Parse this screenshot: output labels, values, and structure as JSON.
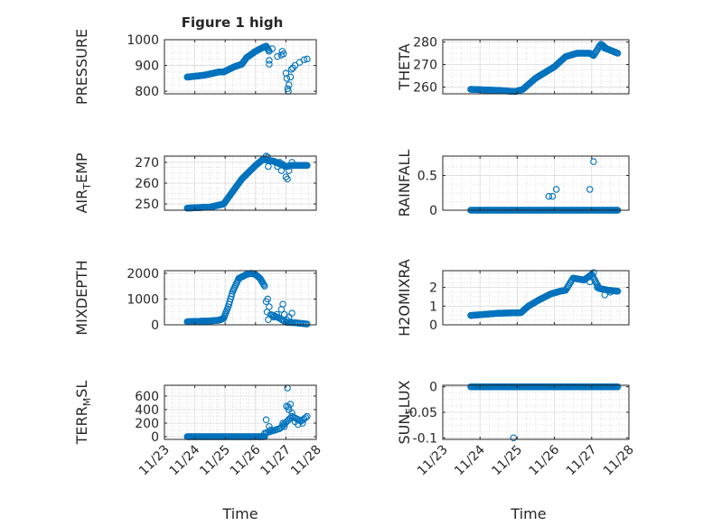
{
  "figure": {
    "title": "Figure 1 high"
  },
  "chart_data": [
    {
      "id": "pressure",
      "type": "scatter",
      "ylabel": "PRESSURE",
      "xlim": [
        0,
        5
      ],
      "ylim": [
        790,
        1000
      ],
      "yticks": [
        800,
        900,
        1000
      ],
      "ytick_labels": [
        "800",
        "900",
        "1000"
      ],
      "xticks": [
        0,
        1,
        2,
        3,
        4,
        5
      ],
      "xtick_labels": [
        "11/23",
        "11/24",
        "11/25",
        "11/26",
        "11/27",
        "11/28"
      ],
      "show_xtick_labels": false,
      "xlabel": "",
      "color": "#0072BD",
      "segments": [
        {
          "pts": [
            [
              0.75,
              855
            ],
            [
              1.3,
              862
            ],
            [
              1.8,
              875
            ],
            [
              1.95,
              875
            ],
            [
              2.3,
              895
            ],
            [
              2.55,
              905
            ],
            [
              2.7,
              930
            ],
            [
              3.0,
              955
            ],
            [
              3.25,
              970
            ],
            [
              3.35,
              975
            ],
            [
              3.45,
              955
            ]
          ],
          "step": 0.025
        }
      ],
      "points": [
        [
          3.45,
          920
        ],
        [
          3.45,
          905
        ],
        [
          3.55,
          965
        ],
        [
          3.72,
          935
        ],
        [
          3.85,
          940
        ],
        [
          3.88,
          955
        ],
        [
          3.92,
          945
        ],
        [
          4.0,
          870
        ],
        [
          4.03,
          850
        ],
        [
          4.06,
          810
        ],
        [
          4.08,
          800
        ],
        [
          4.1,
          825
        ],
        [
          4.15,
          855
        ],
        [
          4.18,
          885
        ],
        [
          4.23,
          890
        ],
        [
          4.3,
          900
        ],
        [
          4.45,
          912
        ],
        [
          4.6,
          922
        ],
        [
          4.7,
          925
        ]
      ]
    },
    {
      "id": "theta",
      "type": "scatter",
      "ylabel": "THETA",
      "xlim": [
        0,
        5
      ],
      "ylim": [
        257,
        281
      ],
      "yticks": [
        260,
        270,
        280
      ],
      "ytick_labels": [
        "260",
        "270",
        "280"
      ],
      "xticks": [
        0,
        1,
        2,
        3,
        4,
        5
      ],
      "xtick_labels": [
        "11/23",
        "11/24",
        "11/25",
        "11/26",
        "11/27",
        "11/28"
      ],
      "show_xtick_labels": false,
      "xlabel": "",
      "color": "#0072BD",
      "segments": [
        {
          "pts": [
            [
              0.75,
              259
            ],
            [
              1.5,
              258.5
            ],
            [
              1.95,
              258
            ],
            [
              2.15,
              259
            ],
            [
              2.5,
              264
            ],
            [
              3.0,
              269
            ],
            [
              3.3,
              273.5
            ],
            [
              3.6,
              275
            ],
            [
              3.95,
              275
            ],
            [
              4.05,
              274
            ],
            [
              4.25,
              279
            ],
            [
              4.4,
              277
            ],
            [
              4.7,
              275
            ]
          ],
          "step": 0.025
        }
      ],
      "points": [
        [
          4.2,
          278
        ],
        [
          4.3,
          278.5
        ],
        [
          4.35,
          277.2
        ]
      ]
    },
    {
      "id": "air_temp",
      "type": "scatter",
      "ylabel": "AIR",
      "ylabel_sub": "T",
      "ylabel_tail": "EMP",
      "xlim": [
        0,
        5
      ],
      "ylim": [
        247,
        273
      ],
      "yticks": [
        250,
        260,
        270
      ],
      "ytick_labels": [
        "250",
        "260",
        "270"
      ],
      "xticks": [
        0,
        1,
        2,
        3,
        4,
        5
      ],
      "xtick_labels": [
        "11/23",
        "11/24",
        "11/25",
        "11/26",
        "11/27",
        "11/28"
      ],
      "show_xtick_labels": false,
      "xlabel": "",
      "color": "#0072BD",
      "segments": [
        {
          "pts": [
            [
              0.75,
              248
            ],
            [
              1.5,
              248.5
            ],
            [
              1.95,
              250
            ],
            [
              2.2,
              255
            ],
            [
              2.55,
              262
            ],
            [
              3.0,
              268.5
            ],
            [
              3.25,
              271.5
            ],
            [
              3.4,
              271
            ],
            [
              3.6,
              270.5
            ],
            [
              4.0,
              268
            ],
            [
              4.2,
              268.5
            ],
            [
              4.7,
              268.5
            ]
          ],
          "step": 0.025
        }
      ],
      "points": [
        [
          3.35,
          273
        ],
        [
          3.4,
          272.5
        ],
        [
          3.42,
          268
        ],
        [
          3.72,
          268
        ],
        [
          3.8,
          270
        ],
        [
          3.85,
          266
        ],
        [
          3.9,
          269
        ],
        [
          4.0,
          263
        ],
        [
          4.05,
          262
        ],
        [
          4.1,
          266
        ],
        [
          4.2,
          270
        ]
      ]
    },
    {
      "id": "rainfall",
      "type": "scatter",
      "ylabel": "RAINFALL",
      "xlim": [
        0,
        5
      ],
      "ylim": [
        0,
        0.78
      ],
      "yticks": [
        0,
        0.5
      ],
      "ytick_labels": [
        "0",
        "0.5"
      ],
      "xticks": [
        0,
        1,
        2,
        3,
        4,
        5
      ],
      "xtick_labels": [
        "11/23",
        "11/24",
        "11/25",
        "11/26",
        "11/27",
        "11/28"
      ],
      "show_xtick_labels": false,
      "xlabel": "",
      "color": "#0072BD",
      "segments": [
        {
          "pts": [
            [
              0.75,
              0
            ],
            [
              4.7,
              0
            ]
          ],
          "step": 0.025
        }
      ],
      "points": [
        [
          2.85,
          0.2
        ],
        [
          2.95,
          0.2
        ],
        [
          3.05,
          0.3
        ],
        [
          3.95,
          0.3
        ],
        [
          4.05,
          0.7
        ]
      ]
    },
    {
      "id": "mixdepth",
      "type": "scatter",
      "ylabel": "MIXDEPTH",
      "xlim": [
        0,
        5
      ],
      "ylim": [
        0,
        2100
      ],
      "yticks": [
        0,
        1000,
        2000
      ],
      "ytick_labels": [
        "0",
        "1000",
        "2000"
      ],
      "xticks": [
        0,
        1,
        2,
        3,
        4,
        5
      ],
      "xtick_labels": [
        "11/23",
        "11/24",
        "11/25",
        "11/26",
        "11/27",
        "11/28"
      ],
      "show_xtick_labels": false,
      "xlabel": "",
      "color": "#0072BD",
      "segments": [
        {
          "pts": [
            [
              0.75,
              120
            ],
            [
              1.5,
              150
            ],
            [
              1.8,
              180
            ],
            [
              1.95,
              250
            ],
            [
              2.1,
              700
            ],
            [
              2.25,
              1300
            ],
            [
              2.45,
              1800
            ],
            [
              2.7,
              1950
            ],
            [
              2.85,
              2000
            ],
            [
              3.0,
              1950
            ],
            [
              3.15,
              1800
            ],
            [
              3.3,
              1500
            ]
          ],
          "step": 0.025
        },
        {
          "pts": [
            [
              3.5,
              400
            ],
            [
              3.8,
              250
            ],
            [
              4.0,
              100
            ],
            [
              4.3,
              80
            ],
            [
              4.7,
              30
            ]
          ],
          "step": 0.045
        }
      ],
      "points": [
        [
          3.35,
          900
        ],
        [
          3.4,
          1000
        ],
        [
          3.45,
          700
        ],
        [
          3.38,
          500
        ],
        [
          3.42,
          200
        ],
        [
          3.6,
          300
        ],
        [
          3.7,
          400
        ],
        [
          3.85,
          600
        ],
        [
          3.9,
          800
        ],
        [
          3.95,
          400
        ],
        [
          4.02,
          200
        ],
        [
          4.1,
          300
        ],
        [
          4.15,
          100
        ],
        [
          4.2,
          450
        ]
      ]
    },
    {
      "id": "h2omixra",
      "type": "scatter",
      "ylabel": "H2OMIXRA",
      "xlim": [
        0,
        5
      ],
      "ylim": [
        0,
        2.9
      ],
      "yticks": [
        0,
        1,
        2
      ],
      "ytick_labels": [
        "0",
        "1",
        "2"
      ],
      "xticks": [
        0,
        1,
        2,
        3,
        4,
        5
      ],
      "xtick_labels": [
        "11/23",
        "11/24",
        "11/25",
        "11/26",
        "11/27",
        "11/28"
      ],
      "show_xtick_labels": false,
      "xlabel": "",
      "color": "#0072BD",
      "segments": [
        {
          "pts": [
            [
              0.75,
              0.5
            ],
            [
              1.5,
              0.62
            ],
            [
              2.1,
              0.65
            ],
            [
              2.3,
              1.0
            ],
            [
              2.6,
              1.35
            ],
            [
              2.9,
              1.65
            ],
            [
              3.15,
              1.8
            ],
            [
              3.3,
              1.85
            ],
            [
              3.5,
              2.5
            ],
            [
              3.8,
              2.4
            ],
            [
              4.0,
              2.7
            ],
            [
              4.2,
              1.95
            ],
            [
              4.45,
              1.85
            ],
            [
              4.7,
              1.8
            ]
          ],
          "step": 0.025
        }
      ],
      "points": [
        [
          4.05,
          2.8
        ],
        [
          4.15,
          2.0
        ],
        [
          4.35,
          1.6
        ],
        [
          4.5,
          1.75
        ],
        [
          3.95,
          2.3
        ]
      ]
    },
    {
      "id": "terr_msl",
      "type": "scatter",
      "ylabel": "TERR",
      "ylabel_sub": "M",
      "ylabel_tail": "SL",
      "xlim": [
        0,
        5
      ],
      "ylim": [
        -40,
        760
      ],
      "yticks": [
        0,
        200,
        400,
        600
      ],
      "ytick_labels": [
        "0",
        "200",
        "400",
        "600"
      ],
      "xticks": [
        0,
        1,
        2,
        3,
        4,
        5
      ],
      "xtick_labels": [
        "11/23",
        "11/24",
        "11/25",
        "11/26",
        "11/27",
        "11/28"
      ],
      "show_xtick_labels": true,
      "xlabel": "Time",
      "color": "#0072BD",
      "segments": [
        {
          "pts": [
            [
              0.75,
              0
            ],
            [
              3.3,
              0
            ]
          ],
          "step": 0.025
        },
        {
          "pts": [
            [
              3.3,
              50
            ],
            [
              3.8,
              120
            ],
            [
              4.2,
              300
            ],
            [
              4.5,
              230
            ],
            [
              4.7,
              300
            ]
          ],
          "step": 0.05
        }
      ],
      "points": [
        [
          3.35,
          250
        ],
        [
          3.45,
          150
        ],
        [
          3.5,
          100
        ],
        [
          3.9,
          200
        ],
        [
          3.95,
          150
        ],
        [
          4.02,
          450
        ],
        [
          4.05,
          720
        ],
        [
          4.08,
          440
        ],
        [
          4.1,
          400
        ],
        [
          4.15,
          480
        ],
        [
          4.2,
          350
        ],
        [
          4.3,
          220
        ],
        [
          4.4,
          180
        ],
        [
          4.55,
          200
        ]
      ]
    },
    {
      "id": "sun_flux",
      "type": "scatter",
      "ylabel": "SUN",
      "ylabel_sub": "F",
      "ylabel_tail": "LUX",
      "xlim": [
        0,
        5
      ],
      "ylim": [
        -0.103,
        0.003
      ],
      "yticks": [
        -0.1,
        -0.05,
        0
      ],
      "ytick_labels": [
        "-0.1",
        "-0.05",
        "0"
      ],
      "xticks": [
        0,
        1,
        2,
        3,
        4,
        5
      ],
      "xtick_labels": [
        "11/23",
        "11/24",
        "11/25",
        "11/26",
        "11/27",
        "11/28"
      ],
      "show_xtick_labels": true,
      "xlabel": "Time",
      "color": "#0072BD",
      "segments": [
        {
          "pts": [
            [
              0.75,
              0
            ],
            [
              4.7,
              0
            ]
          ],
          "step": 0.025
        }
      ],
      "points": [
        [
          1.9,
          -0.1
        ]
      ]
    }
  ]
}
